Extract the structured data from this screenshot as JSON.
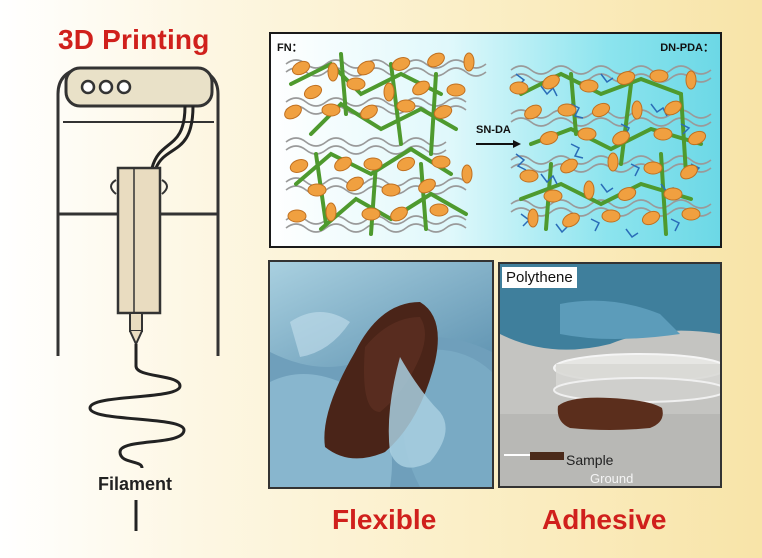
{
  "title": "3D Printing",
  "printer": {
    "filament_label": "Filament"
  },
  "network": {
    "left_label": "FN：",
    "right_label": "DN-PDA：",
    "arrow_label": "SN-DA"
  },
  "photos": {
    "flexible": {
      "caption": "Flexible"
    },
    "adhesive": {
      "caption": "Adhesive",
      "polythene_label": "Polythene",
      "sample_label": "Sample",
      "ground_label": "Ground"
    }
  },
  "colors": {
    "accent_red": "#d0201c",
    "particle_orange": "#f0a040",
    "fiber_green": "#4e9a2e",
    "chain_gray": "#9a9a9a",
    "crosslink_blue": "#2a6db8"
  }
}
